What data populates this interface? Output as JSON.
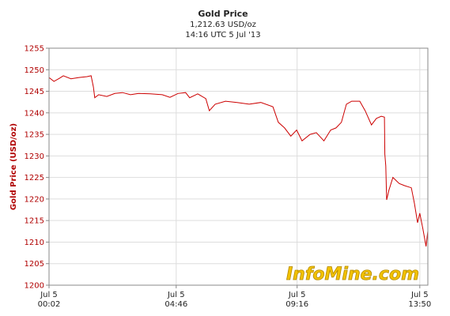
{
  "chart_data": {
    "type": "line",
    "title": "Gold Price",
    "subtitle": "1,212.63 USD/oz",
    "timestamp": "14:16 UTC 5 Jul '13",
    "y_label": "Gold Price (USD/oz)",
    "watermark": "InfoMine.com",
    "grid": true,
    "color": "#cc0000",
    "xlim": [
      "00:02",
      "14:08"
    ],
    "xticks": [
      {
        "value": "00:02",
        "date": "Jul 5",
        "time": "00:02"
      },
      {
        "value": "04:46",
        "date": "Jul 5",
        "time": "04:46"
      },
      {
        "value": "09:16",
        "date": "Jul 5",
        "time": "09:16"
      },
      {
        "value": "13:50",
        "date": "Jul 5",
        "time": "13:50"
      }
    ],
    "ylim": [
      1200,
      1255
    ],
    "yticks": [
      1200,
      1205,
      1210,
      1215,
      1220,
      1225,
      1230,
      1235,
      1240,
      1245,
      1250,
      1255
    ],
    "x": [
      "00:02",
      "00:13",
      "00:25",
      "00:34",
      "00:51",
      "01:09",
      "01:27",
      "01:36",
      "01:41",
      "01:44",
      "01:53",
      "02:11",
      "02:29",
      "02:46",
      "03:04",
      "03:22",
      "03:48",
      "04:15",
      "04:32",
      "04:50",
      "05:07",
      "05:16",
      "05:34",
      "05:52",
      "06:00",
      "06:13",
      "06:36",
      "07:02",
      "07:29",
      "07:55",
      "08:22",
      "08:34",
      "08:48",
      "09:02",
      "09:15",
      "09:27",
      "09:45",
      "09:59",
      "10:16",
      "10:31",
      "10:43",
      "10:55",
      "11:06",
      "11:18",
      "11:36",
      "11:48",
      "12:02",
      "12:13",
      "12:24",
      "12:31",
      "12:32",
      "12:34",
      "12:36",
      "12:41",
      "12:50",
      "13:04",
      "13:16",
      "13:31",
      "13:38",
      "13:45",
      "13:50",
      "13:57",
      "14:04",
      "14:08"
    ],
    "values": [
      1248.2,
      1247.3,
      1248,
      1248.6,
      1247.9,
      1248.2,
      1248.4,
      1248.6,
      1246,
      1243.5,
      1244.2,
      1243.8,
      1244.5,
      1244.7,
      1244.2,
      1244.5,
      1244.4,
      1244.2,
      1243.6,
      1244.5,
      1244.7,
      1243.5,
      1244.4,
      1243.3,
      1240.5,
      1242,
      1242.7,
      1242.4,
      1242,
      1242.4,
      1241.4,
      1237.8,
      1236.5,
      1234.6,
      1236,
      1233.5,
      1235,
      1235.4,
      1233.5,
      1236,
      1236.5,
      1237.8,
      1242,
      1242.7,
      1242.7,
      1240.5,
      1237.2,
      1238.7,
      1239.2,
      1239,
      1230.4,
      1227.7,
      1219.8,
      1222,
      1225,
      1223.6,
      1223.1,
      1222.6,
      1219,
      1214.5,
      1216.7,
      1213,
      1209,
      1212.6
    ]
  }
}
